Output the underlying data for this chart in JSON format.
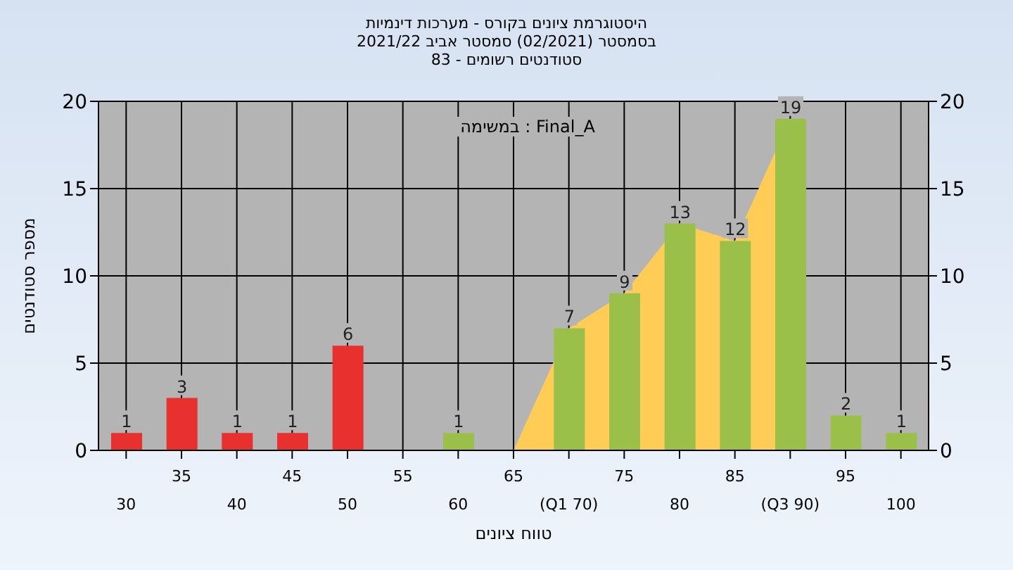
{
  "chart_data": {
    "type": "bar",
    "title": "היסטוגרמת ציונים בקורס - מערכות דינמיות",
    "subtitle": "בסמסטר (02/2021) סמסטר אביב 2021/22\nסטודנטים רשומים - 83",
    "xlabel": "טווח ציונים",
    "ylabel": "מספר סטודנטים",
    "annotations": [
      "Final_A : במשימה"
    ],
    "categories": [
      "30",
      "35",
      "40",
      "45",
      "50",
      "55",
      "60",
      "65",
      "(Q1 70)",
      "75",
      "80",
      "85",
      "(Q3 90)",
      "95",
      "100"
    ],
    "series": [
      {
        "type": "area",
        "color": "#ffcc55",
        "values": [
          null,
          null,
          null,
          null,
          null,
          null,
          null,
          0,
          7,
          9,
          13,
          12,
          19,
          null,
          null
        ]
      },
      {
        "colors": [
          "#e8302f",
          "#e8302f",
          "#e8302f",
          "#e8302f",
          "#e8302f",
          "#e8302f",
          "#9ac04a",
          "#9ac04a",
          "#9ac04a",
          "#9ac04a",
          "#9ac04a",
          "#9ac04a",
          "#9ac04a",
          "#9ac04a",
          "#9ac04a"
        ],
        "values": [
          1,
          3,
          1,
          1,
          6,
          0,
          1,
          0,
          7,
          9,
          13,
          12,
          19,
          2,
          1
        ],
        "value_labels": [
          "1",
          "3",
          "1",
          "1",
          "6",
          null,
          "1",
          null,
          "7",
          "9",
          "13",
          "12",
          "19",
          "2",
          "1"
        ]
      }
    ],
    "ylim": [
      0,
      20
    ],
    "yticks": [
      0,
      5,
      10,
      15,
      20
    ],
    "y2lim": [
      0,
      20
    ],
    "y2ticks": [
      0,
      5,
      10,
      15,
      20
    ],
    "grid": true,
    "legend": false
  }
}
